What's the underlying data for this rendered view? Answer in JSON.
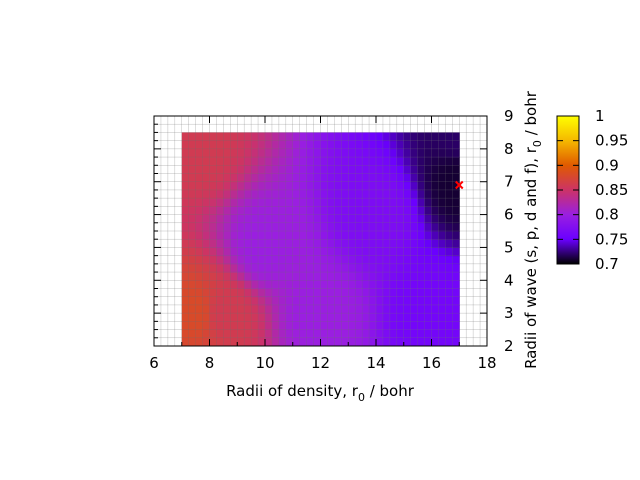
{
  "chart_data": {
    "type": "heatmap",
    "xlabel": {
      "main": "Radii of density, r",
      "sub": "0",
      "unit": " / bohr"
    },
    "ylabel": {
      "main": "Radii of wave (s, p, d and f), r",
      "sub": "0",
      "unit": " / bohr"
    },
    "xlim": [
      6,
      18
    ],
    "ylim": [
      2,
      9
    ],
    "xticks": [
      "6",
      "8",
      "10",
      "12",
      "14",
      "16",
      "18"
    ],
    "yticks": [
      "2",
      "3",
      "4",
      "5",
      "6",
      "7",
      "8",
      "9"
    ],
    "data_extent": {
      "x": [
        7,
        17
      ],
      "y": [
        2,
        8.5
      ]
    },
    "grid": true,
    "colorbar": {
      "range": [
        0.7,
        1.0
      ],
      "ticks": [
        "0.7",
        "0.75",
        "0.8",
        "0.85",
        "0.9",
        "0.95",
        "1"
      ],
      "colormap": "gnuplot",
      "colors": [
        "#000000",
        "#6a00ff",
        "#9a1fe0",
        "#cc3366",
        "#e05a00",
        "#f5b800",
        "#ffff00"
      ]
    },
    "value_samples": [
      {
        "x": 7.5,
        "y": 8.0,
        "value": 0.86
      },
      {
        "x": 7.5,
        "y": 3.0,
        "value": 0.88
      },
      {
        "x": 8.5,
        "y": 3.0,
        "value": 0.86
      },
      {
        "x": 10,
        "y": 5,
        "value": 0.8
      },
      {
        "x": 12,
        "y": 3,
        "value": 0.8
      },
      {
        "x": 14,
        "y": 6,
        "value": 0.77
      },
      {
        "x": 16,
        "y": 3,
        "value": 0.76
      },
      {
        "x": 17,
        "y": 7,
        "value": 0.71
      },
      {
        "x": 17,
        "y": 8.5,
        "value": 0.72
      }
    ],
    "minimum_marker": {
      "x": 17,
      "y": 6.9,
      "symbol": "x",
      "color": "#ff0000"
    }
  }
}
